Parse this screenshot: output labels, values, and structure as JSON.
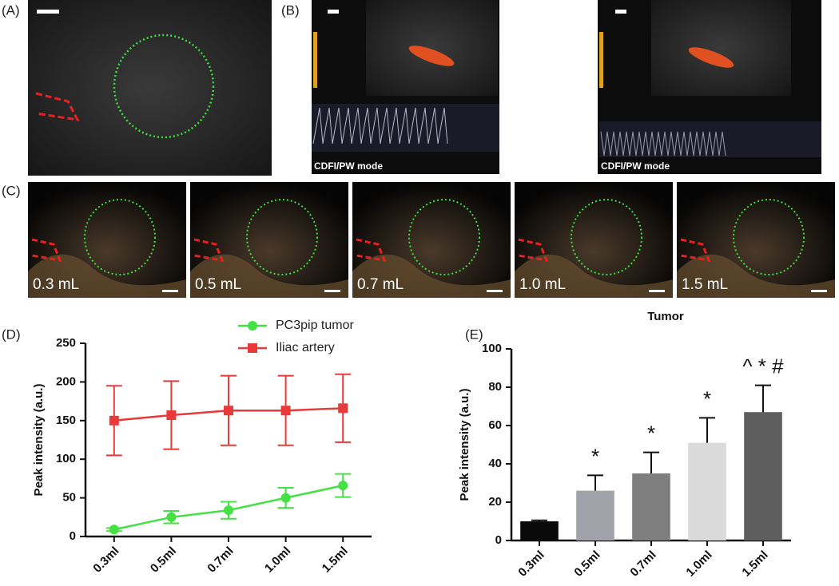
{
  "panels": {
    "a": "(A)",
    "b": "(B)",
    "c": "(C)",
    "d": "(D)",
    "e": "(E)"
  },
  "doppler_labels": [
    "CDFI/PW mode",
    "CDFI/PW mode"
  ],
  "volume_labels": [
    "0.3 mL",
    "0.5 mL",
    "0.7 mL",
    "1.0 mL",
    "1.5 mL"
  ],
  "chart_data": [
    {
      "type": "line",
      "y_label": "Peak intensity (a.u.)",
      "categories": [
        "0.3ml",
        "0.5ml",
        "0.7ml",
        "1.0ml",
        "1.5ml"
      ],
      "series": [
        {
          "name": "PC3pip tumor",
          "color": "#44e044",
          "marker": "circle",
          "values": [
            9,
            25,
            34,
            50,
            66
          ],
          "errors": [
            2,
            8,
            11,
            13,
            15
          ]
        },
        {
          "name": "Iliac artery",
          "color": "#e83a3a",
          "marker": "square",
          "values": [
            150,
            157,
            163,
            163,
            166
          ],
          "errors": [
            45,
            44,
            45,
            45,
            44
          ]
        }
      ],
      "ylim": [
        0,
        250
      ],
      "yticks": [
        0,
        50,
        100,
        150,
        200,
        250
      ]
    },
    {
      "type": "bar",
      "title": "Tumor",
      "y_label": "Peak intensity (a.u.)",
      "categories": [
        "0.3ml",
        "0.5ml",
        "0.7ml",
        "1.0ml",
        "1.5ml"
      ],
      "values": [
        10,
        26,
        35,
        51,
        67
      ],
      "errors": [
        0.5,
        8,
        11,
        13,
        14
      ],
      "colors": [
        "#0a0a0a",
        "#a2a2aa",
        "#7e7e7e",
        "#dadada",
        "#5e5e5e"
      ],
      "annotations": [
        {
          "category": "0.5ml",
          "text": "*"
        },
        {
          "category": "0.7ml",
          "text": "*"
        },
        {
          "category": "1.0ml",
          "text": "*"
        },
        {
          "category": "1.5ml",
          "text": "^ * #"
        }
      ],
      "ylim": [
        0,
        100
      ],
      "yticks": [
        0,
        20,
        40,
        60,
        80,
        100
      ]
    }
  ]
}
